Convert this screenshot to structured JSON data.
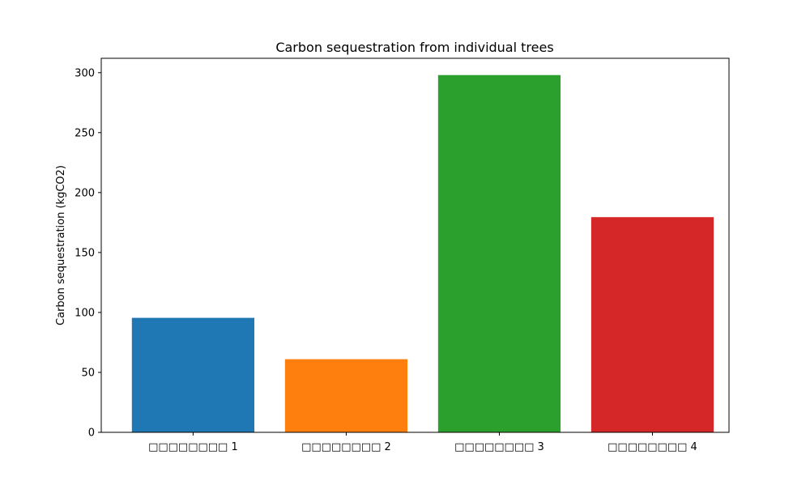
{
  "chart_data": {
    "type": "bar",
    "title": "Carbon sequestration from individual trees",
    "xlabel": "",
    "ylabel": "Carbon sequestration (kgCO2)",
    "categories": [
      "□□□□□□□□ 1",
      "□□□□□□□□ 2",
      "□□□□□□□□ 3",
      "□□□□□□□□ 4"
    ],
    "values": [
      95.5,
      61,
      298,
      179.5
    ],
    "colors": [
      "#1f77b4",
      "#ff7f0e",
      "#2ca02c",
      "#d62728"
    ],
    "ylim": [
      0,
      312
    ],
    "yticks": [
      0,
      50,
      100,
      150,
      200,
      250,
      300
    ],
    "grid": false,
    "legend": "none"
  }
}
